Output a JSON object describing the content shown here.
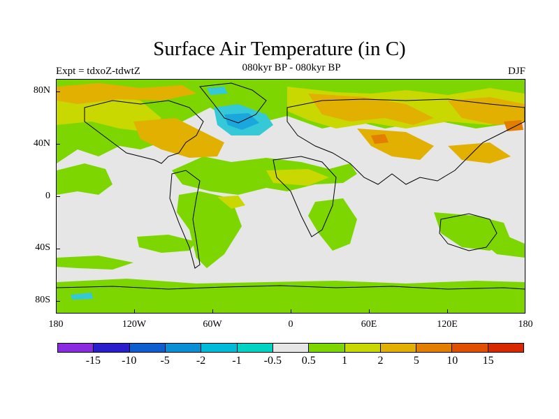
{
  "figure": {
    "title": "Surface Air Temperature (in C)",
    "subtitle": "080kyr BP - 080kyr BP",
    "experiment": "Expt = tdxoZ-tdwtZ",
    "season": "DJF"
  },
  "map": {
    "background_color": "#e6e6e6",
    "lat_labels": [
      "80N",
      "40N",
      "0",
      "40S",
      "80S"
    ],
    "lon_labels": [
      "180",
      "120W",
      "60W",
      "0",
      "60E",
      "120E",
      "180"
    ]
  },
  "colorbar": {
    "colors": [
      "#8a2be2",
      "#2a1dcc",
      "#0e5ecf",
      "#0a8fd6",
      "#00bcd8",
      "#00d2c4",
      "#e6e6e6",
      "#7ed600",
      "#c8d800",
      "#e2b000",
      "#e27e00",
      "#e05000",
      "#d82800"
    ],
    "labels": [
      "-15",
      "-10",
      "-5",
      "-2",
      "-1",
      "-0.5",
      "0.5",
      "1",
      "2",
      "5",
      "10",
      "15"
    ]
  },
  "field_colors": {
    "cold_cyan": "#35c8d6",
    "cold_blue": "#1aa7dd",
    "warm_green": "#7ed600",
    "warm_yellow": "#c8d800",
    "warm_orange": "#e2b000",
    "warm_darkorange": "#e27e00"
  }
}
